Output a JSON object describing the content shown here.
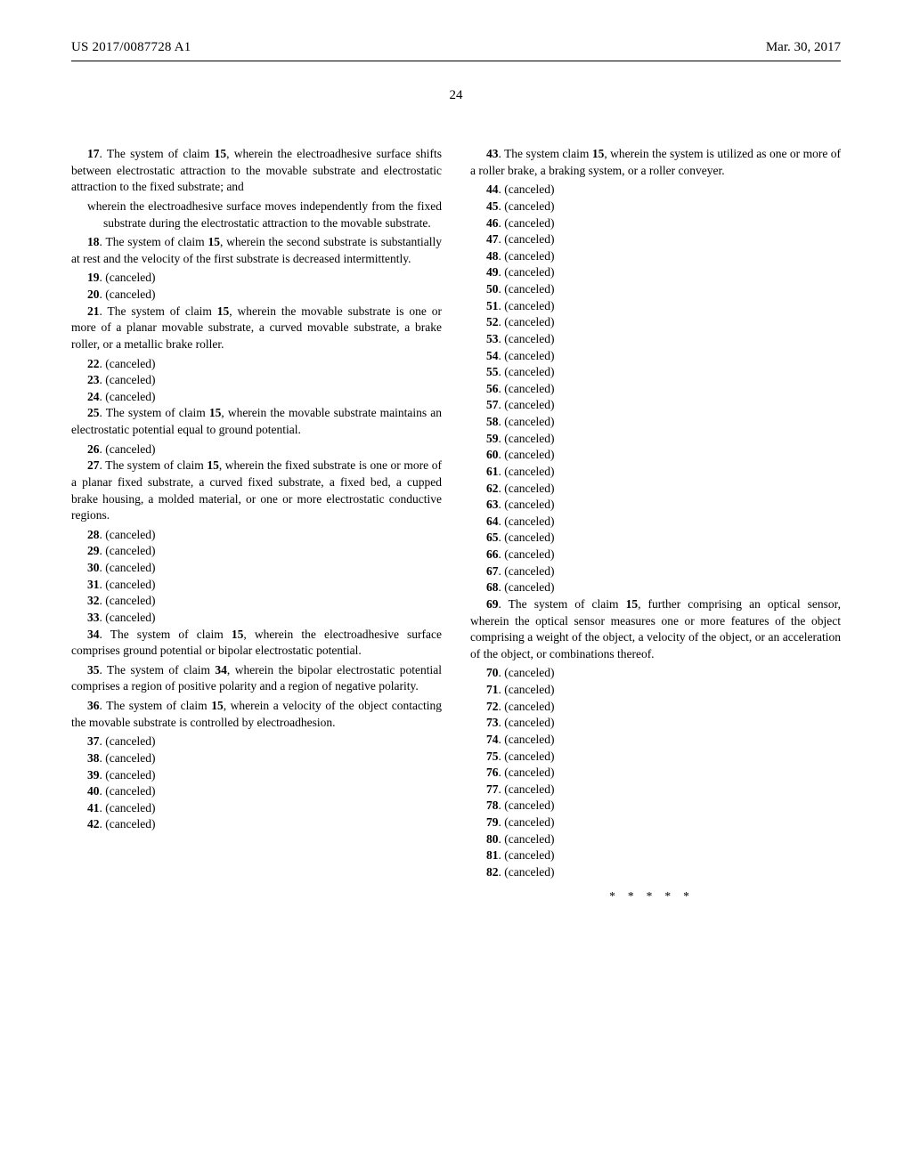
{
  "header": {
    "patent_number": "US 2017/0087728 A1",
    "date": "Mar. 30, 2017",
    "page_number": "24"
  },
  "left_column": {
    "claim_17": {
      "num": "17",
      "intro": ". The system of claim ",
      "ref": "15",
      "body": ", wherein the electroadhesive surface shifts between electrostatic attraction to the movable substrate and electrostatic attraction to the fixed substrate; and",
      "sub": "wherein the electroadhesive surface moves independently from the fixed substrate during the electrostatic attraction to the movable substrate."
    },
    "claim_18": {
      "num": "18",
      "intro": ". The system of claim ",
      "ref": "15",
      "body": ", wherein the second substrate is substantially at rest and the velocity of the first substrate is decreased intermittently."
    },
    "canceled_19": {
      "num": "19",
      "text": ". (canceled)"
    },
    "canceled_20": {
      "num": "20",
      "text": ". (canceled)"
    },
    "claim_21": {
      "num": "21",
      "intro": ". The system of claim ",
      "ref": "15",
      "body": ", wherein the movable substrate is one or more of a planar movable substrate, a curved movable substrate, a brake roller, or a metallic brake roller."
    },
    "canceled_22": {
      "num": "22",
      "text": ". (canceled)"
    },
    "canceled_23": {
      "num": "23",
      "text": ". (canceled)"
    },
    "canceled_24": {
      "num": "24",
      "text": ". (canceled)"
    },
    "claim_25": {
      "num": "25",
      "intro": ". The system of claim ",
      "ref": "15",
      "body": ", wherein the movable substrate maintains an electrostatic potential equal to ground potential."
    },
    "canceled_26": {
      "num": "26",
      "text": ". (canceled)"
    },
    "claim_27": {
      "num": "27",
      "intro": ". The system of claim ",
      "ref": "15",
      "body": ", wherein the fixed substrate is one or more of a planar fixed substrate, a curved fixed substrate, a fixed bed, a cupped brake housing, a molded material, or one or more electrostatic conductive regions."
    },
    "canceled_28": {
      "num": "28",
      "text": ". (canceled)"
    },
    "canceled_29": {
      "num": "29",
      "text": ". (canceled)"
    },
    "canceled_30": {
      "num": "30",
      "text": ". (canceled)"
    },
    "canceled_31": {
      "num": "31",
      "text": ". (canceled)"
    },
    "canceled_32": {
      "num": "32",
      "text": ". (canceled)"
    },
    "canceled_33": {
      "num": "33",
      "text": ". (canceled)"
    },
    "claim_34": {
      "num": "34",
      "intro": ". The system of claim ",
      "ref": "15",
      "body": ", wherein the electroadhesive surface comprises ground potential or bipolar electrostatic potential."
    },
    "claim_35": {
      "num": "35",
      "intro": ". The system of claim ",
      "ref": "34",
      "body": ", wherein the bipolar electrostatic potential comprises a region of positive polarity and a region of negative polarity."
    },
    "claim_36": {
      "num": "36",
      "intro": ". The system of claim ",
      "ref": "15",
      "body": ", wherein a velocity of the object contacting the movable substrate is controlled by electroadhesion."
    },
    "canceled_37": {
      "num": "37",
      "text": ". (canceled)"
    },
    "canceled_38": {
      "num": "38",
      "text": ". (canceled)"
    },
    "canceled_39": {
      "num": "39",
      "text": ". (canceled)"
    },
    "canceled_40": {
      "num": "40",
      "text": ". (canceled)"
    },
    "canceled_41": {
      "num": "41",
      "text": ". (canceled)"
    },
    "canceled_42": {
      "num": "42",
      "text": ". (canceled)"
    }
  },
  "right_column": {
    "claim_43": {
      "num": "43",
      "intro": ". The system claim ",
      "ref": "15",
      "body": ", wherein the system is utilized as one or more of a roller brake, a braking system, or a roller conveyer."
    },
    "canceled_44": {
      "num": "44",
      "text": ". (canceled)"
    },
    "canceled_45": {
      "num": "45",
      "text": ". (canceled)"
    },
    "canceled_46": {
      "num": "46",
      "text": ". (canceled)"
    },
    "canceled_47": {
      "num": "47",
      "text": ". (canceled)"
    },
    "canceled_48": {
      "num": "48",
      "text": ". (canceled)"
    },
    "canceled_49": {
      "num": "49",
      "text": ". (canceled)"
    },
    "canceled_50": {
      "num": "50",
      "text": ". (canceled)"
    },
    "canceled_51": {
      "num": "51",
      "text": ". (canceled)"
    },
    "canceled_52": {
      "num": "52",
      "text": ". (canceled)"
    },
    "canceled_53": {
      "num": "53",
      "text": ". (canceled)"
    },
    "canceled_54": {
      "num": "54",
      "text": ". (canceled)"
    },
    "canceled_55": {
      "num": "55",
      "text": ". (canceled)"
    },
    "canceled_56": {
      "num": "56",
      "text": ". (canceled)"
    },
    "canceled_57": {
      "num": "57",
      "text": ". (canceled)"
    },
    "canceled_58": {
      "num": "58",
      "text": ". (canceled)"
    },
    "canceled_59": {
      "num": "59",
      "text": ". (canceled)"
    },
    "canceled_60": {
      "num": "60",
      "text": ". (canceled)"
    },
    "canceled_61": {
      "num": "61",
      "text": ". (canceled)"
    },
    "canceled_62": {
      "num": "62",
      "text": ". (canceled)"
    },
    "canceled_63": {
      "num": "63",
      "text": ". (canceled)"
    },
    "canceled_64": {
      "num": "64",
      "text": ". (canceled)"
    },
    "canceled_65": {
      "num": "65",
      "text": ". (canceled)"
    },
    "canceled_66": {
      "num": "66",
      "text": ". (canceled)"
    },
    "canceled_67": {
      "num": "67",
      "text": ". (canceled)"
    },
    "canceled_68": {
      "num": "68",
      "text": ". (canceled)"
    },
    "claim_69": {
      "num": "69",
      "intro": ". The system of claim ",
      "ref": "15",
      "body": ", further comprising an optical sensor, wherein the optical sensor measures one or more features of the object comprising a weight of the object, a velocity of the object, or an acceleration of the object, or combinations thereof."
    },
    "canceled_70": {
      "num": "70",
      "text": ". (canceled)"
    },
    "canceled_71": {
      "num": "71",
      "text": ". (canceled)"
    },
    "canceled_72": {
      "num": "72",
      "text": ". (canceled)"
    },
    "canceled_73": {
      "num": "73",
      "text": ". (canceled)"
    },
    "canceled_74": {
      "num": "74",
      "text": ". (canceled)"
    },
    "canceled_75": {
      "num": "75",
      "text": ". (canceled)"
    },
    "canceled_76": {
      "num": "76",
      "text": ". (canceled)"
    },
    "canceled_77": {
      "num": "77",
      "text": ". (canceled)"
    },
    "canceled_78": {
      "num": "78",
      "text": ". (canceled)"
    },
    "canceled_79": {
      "num": "79",
      "text": ". (canceled)"
    },
    "canceled_80": {
      "num": "80",
      "text": ". (canceled)"
    },
    "canceled_81": {
      "num": "81",
      "text": ". (canceled)"
    },
    "canceled_82": {
      "num": "82",
      "text": ". (canceled)"
    },
    "asterisks": "*****"
  }
}
